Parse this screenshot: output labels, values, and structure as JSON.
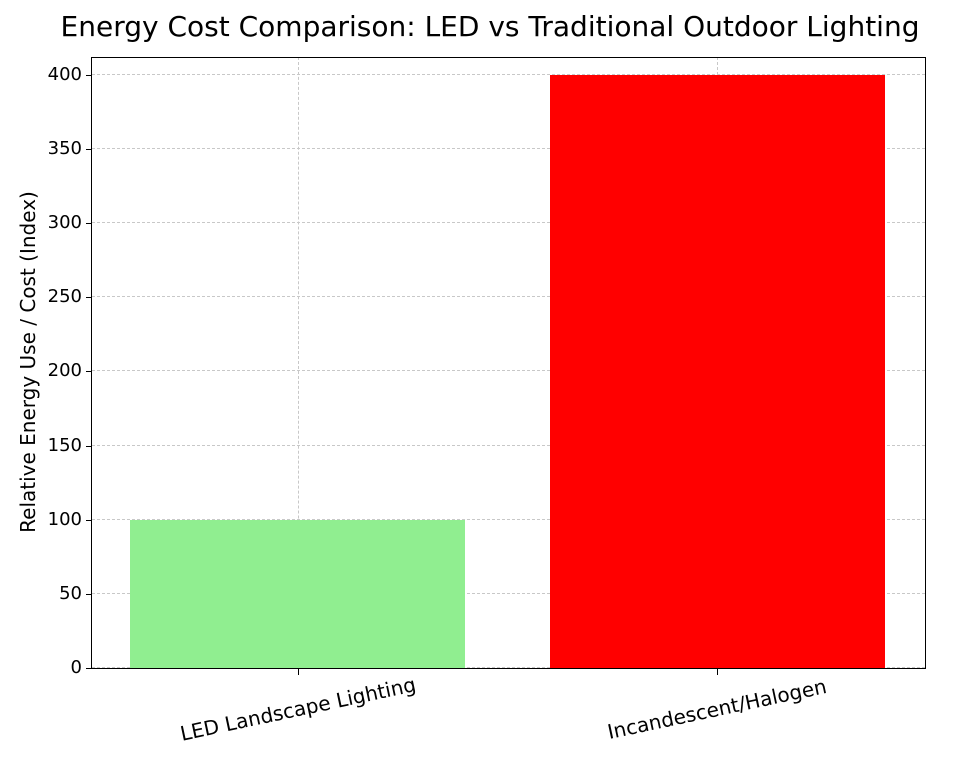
{
  "chart_data": {
    "type": "bar",
    "title": "Energy Cost Comparison: LED vs Traditional Outdoor Lighting",
    "xlabel": "",
    "ylabel": "Relative Energy Use / Cost (Index)",
    "categories": [
      "LED Landscape Lighting",
      "Incandescent/Halogen"
    ],
    "values": [
      100,
      400
    ],
    "bar_colors": [
      "#90EE90",
      "#FF0000"
    ],
    "yticks": [
      0,
      50,
      100,
      150,
      200,
      250,
      300,
      350,
      400
    ],
    "ylim": [
      0,
      412
    ],
    "grid": "dashed",
    "legend": "none"
  }
}
